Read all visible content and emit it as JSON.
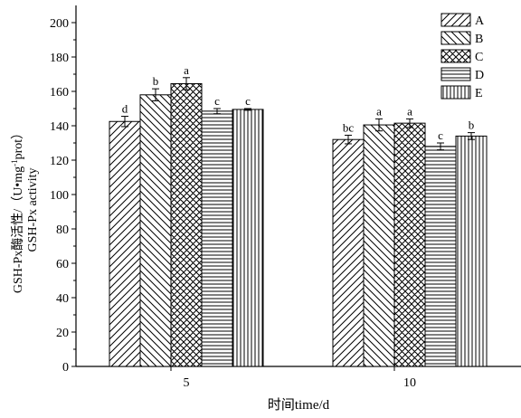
{
  "chart_data": {
    "type": "bar",
    "categories": [
      "5",
      "10"
    ],
    "xlabel": "时间time/d",
    "ylabel_line1": "GSH-Px酶活性/（U•mg",
    "ylabel_sup": "-1",
    "ylabel_line1_end": "prot）",
    "ylabel_line2": "GSH-Px activity",
    "ylim": [
      0,
      210
    ],
    "yticks": [
      0,
      20,
      40,
      60,
      80,
      100,
      120,
      140,
      160,
      180,
      200
    ],
    "legend_position": "top-right",
    "series": [
      {
        "name": "A",
        "pattern": "diag-right",
        "values": [
          142.5,
          132.0
        ],
        "errors": [
          3.0,
          2.5
        ],
        "labels": [
          "d",
          "bc"
        ]
      },
      {
        "name": "B",
        "pattern": "diag-left",
        "values": [
          158.0,
          140.5
        ],
        "errors": [
          3.5,
          3.5
        ],
        "labels": [
          "b",
          "a"
        ]
      },
      {
        "name": "C",
        "pattern": "crosshatch",
        "values": [
          164.5,
          141.5
        ],
        "errors": [
          3.5,
          2.5
        ],
        "labels": [
          "a",
          "a"
        ]
      },
      {
        "name": "D",
        "pattern": "horizontal",
        "values": [
          148.5,
          128.0
        ],
        "errors": [
          1.5,
          2.0
        ],
        "labels": [
          "c",
          "c"
        ]
      },
      {
        "name": "E",
        "pattern": "vertical",
        "values": [
          149.5,
          134.0
        ],
        "errors": [
          0.5,
          2.0
        ],
        "labels": [
          "c",
          "b"
        ]
      }
    ]
  }
}
